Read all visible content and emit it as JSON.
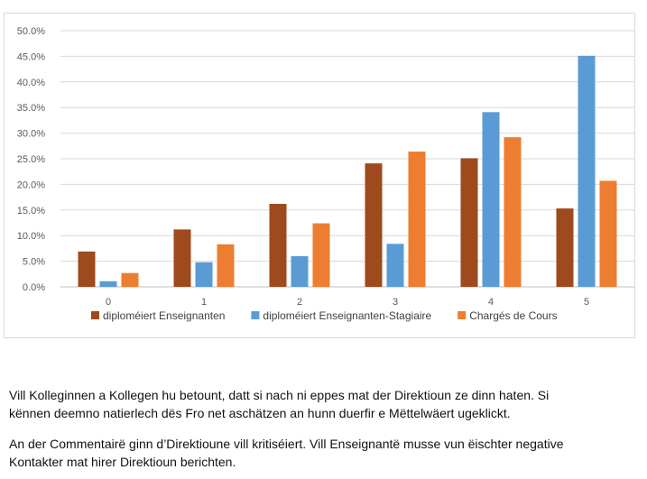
{
  "chart_data": {
    "type": "bar",
    "categories": [
      "0",
      "1",
      "2",
      "3",
      "4",
      "5"
    ],
    "series": [
      {
        "name": "diploméiert Enseignanten",
        "color": "#9e4a1c",
        "values": [
          6.9,
          11.2,
          16.2,
          24.1,
          25.1,
          15.3
        ]
      },
      {
        "name": "diploméiert Enseignanten-Stagiaire",
        "color": "#5b9bd5",
        "values": [
          1.1,
          4.8,
          6.0,
          8.4,
          34.1,
          45.1
        ]
      },
      {
        "name": "Chargés de Cours",
        "color": "#ed7d31",
        "values": [
          2.7,
          8.3,
          12.4,
          26.4,
          29.2,
          20.7
        ]
      }
    ],
    "yticks": [
      "0.0%",
      "5.0%",
      "10.0%",
      "15.0%",
      "20.0%",
      "25.0%",
      "30.0%",
      "35.0%",
      "40.0%",
      "45.0%",
      "50.0%"
    ],
    "ylim": [
      0,
      50
    ],
    "grid": true,
    "legend_position": "bottom",
    "title": "",
    "xlabel": "",
    "ylabel": ""
  },
  "text": {
    "para1_line1": "Vill Kolleginnen a Kollegen hu betount, datt si nach ni eppes mat der Direktioun ze dinn haten. Si",
    "para1_line2": "kënnen deemno natierlech dës Fro net aschätzen an hunn duerfir e Mëttelwäert ugeklickt.",
    "para2_line1": "An der Commentairë ginn d’Direktioune vill kritiséiert. Vill Enseignantë musse vun ëischter negative",
    "para2_line2": "Kontakter mat hirer Direktioun berichten."
  }
}
